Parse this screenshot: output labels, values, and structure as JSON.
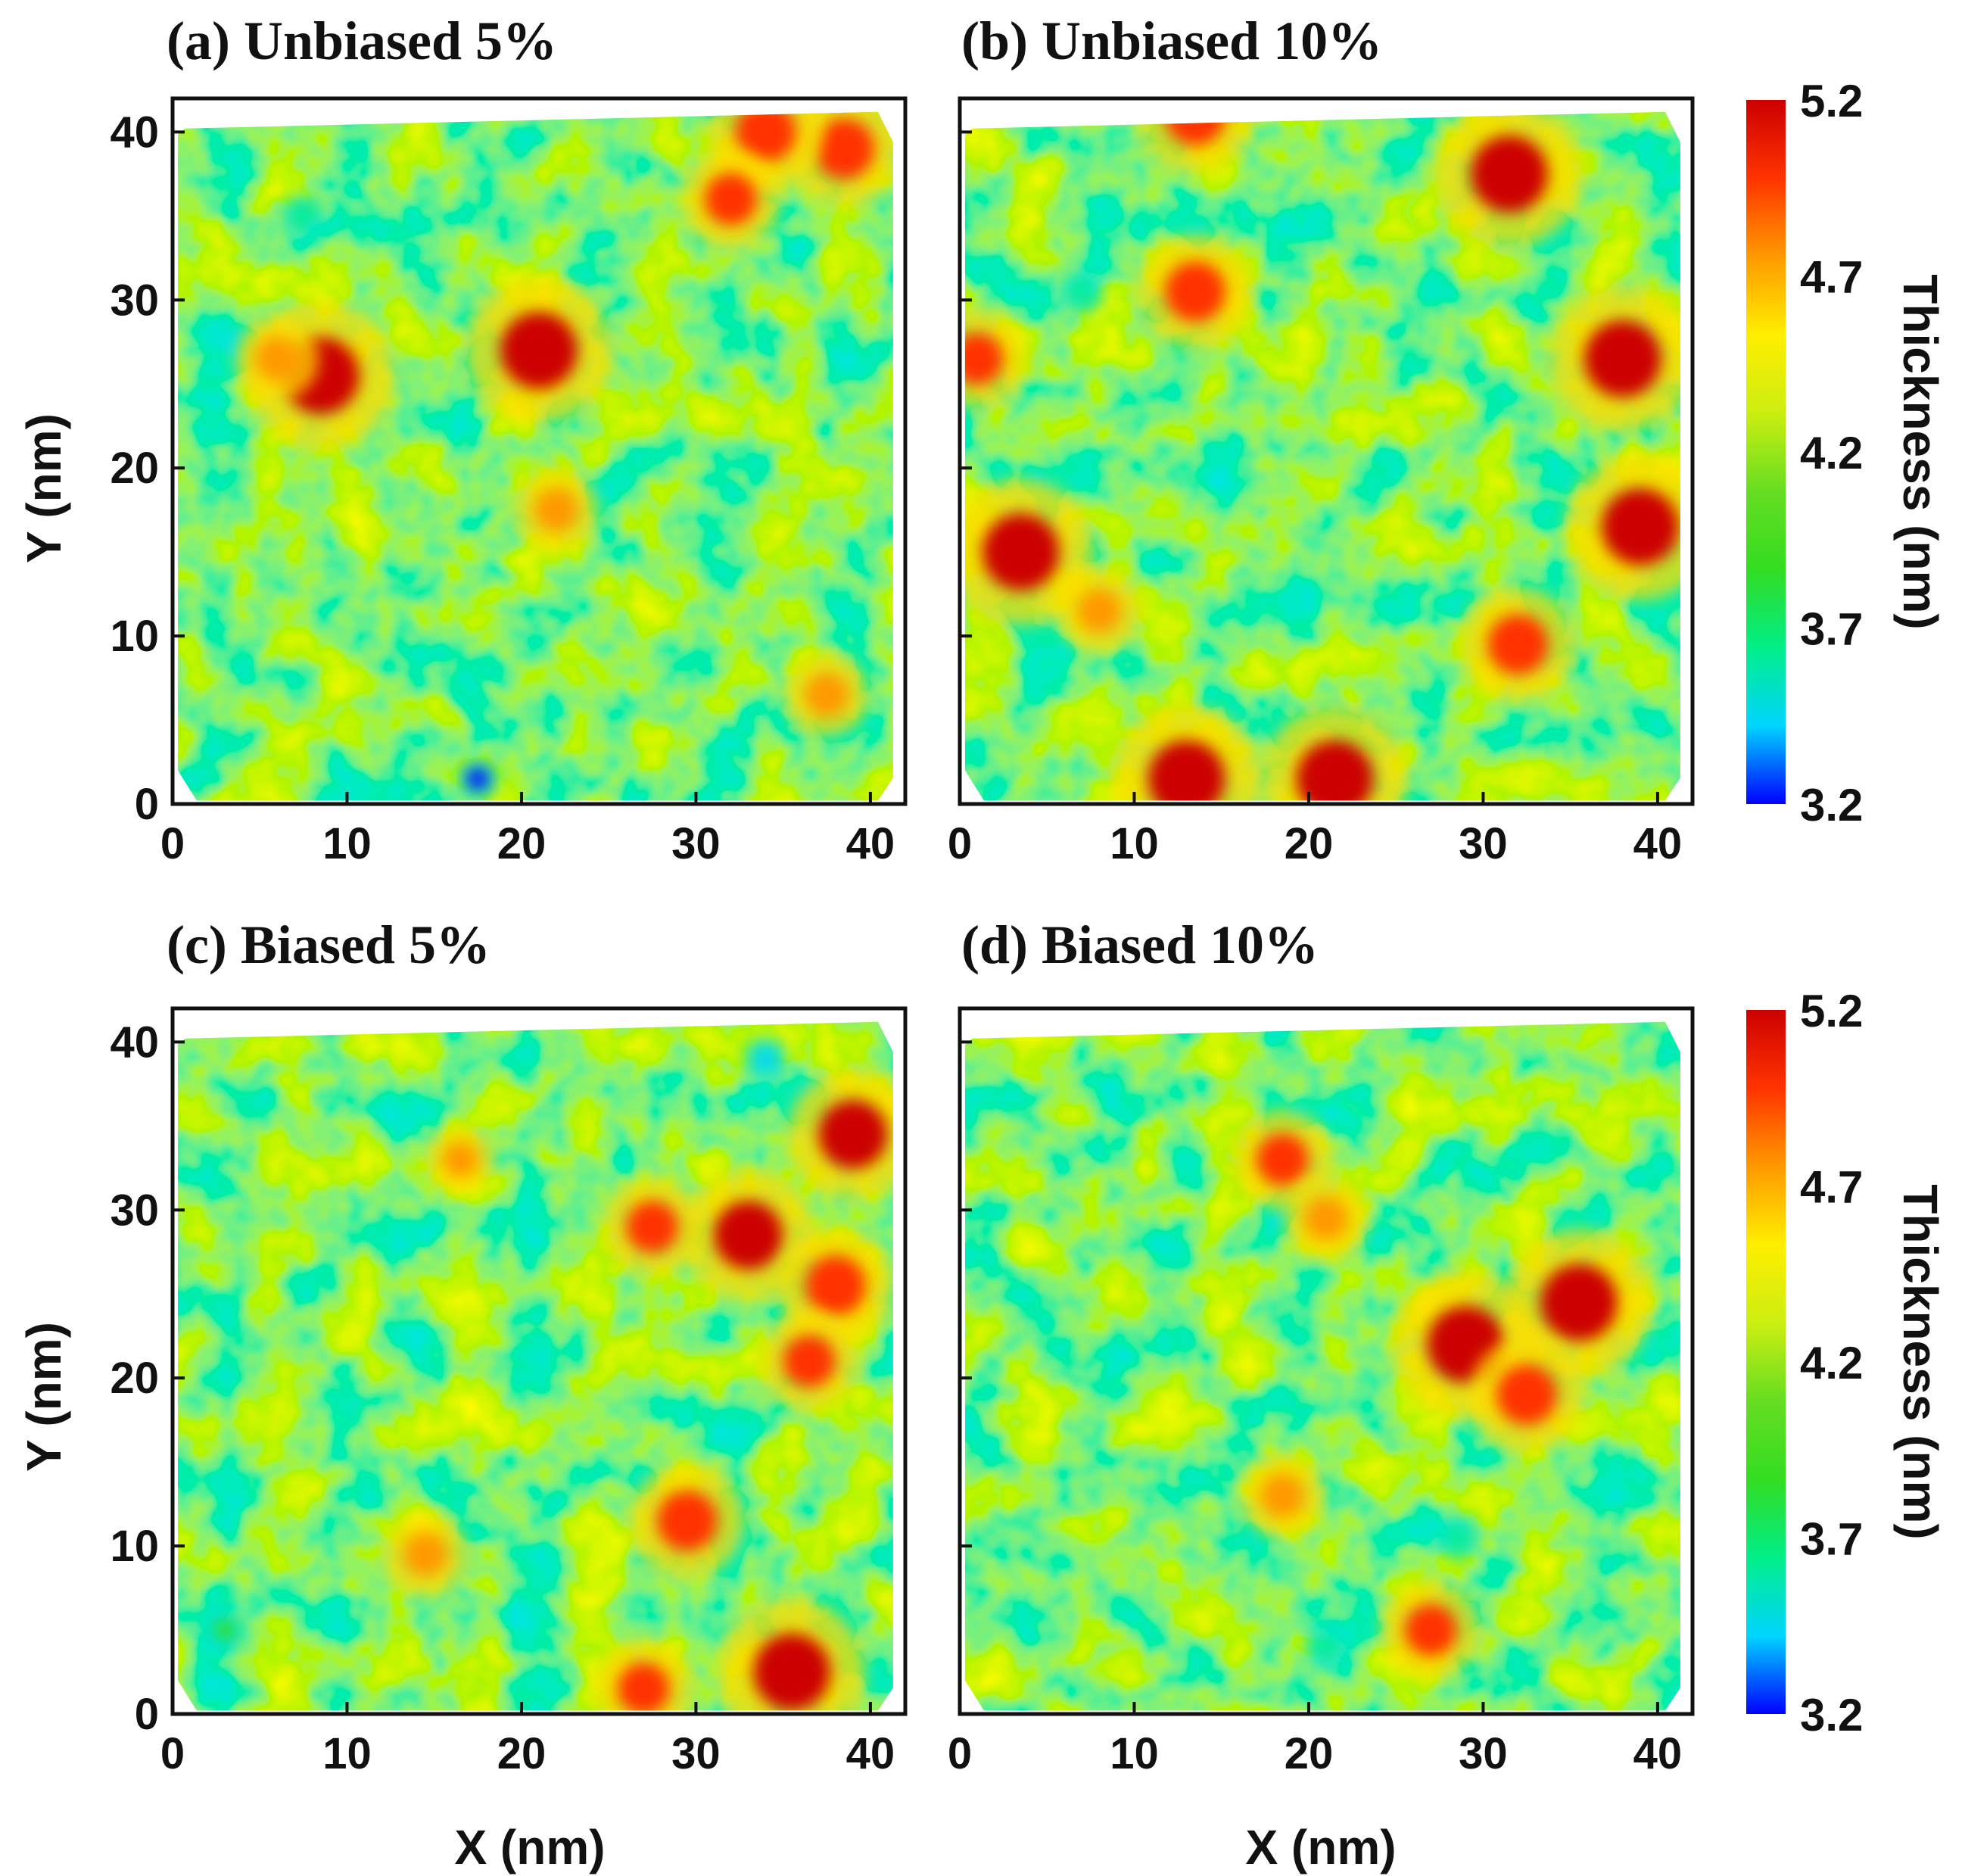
{
  "chart_data": [
    {
      "type": "heatmap",
      "title": "(a) Unbiased 5%",
      "xlabel": "",
      "ylabel": "Y (nm)",
      "xlim": [
        0,
        42
      ],
      "ylim": [
        0,
        42
      ],
      "x_ticks": [
        "0",
        "10",
        "20",
        "30",
        "40"
      ],
      "y_ticks": [
        "0",
        "10",
        "20",
        "30",
        "40"
      ],
      "z_label": "Thickness (nm)",
      "z_range": [
        3.2,
        5.2
      ],
      "hotspots": [
        {
          "x": 8.5,
          "y": 25.5,
          "z": 5.2
        },
        {
          "x": 21.0,
          "y": 27.0,
          "z": 5.2
        },
        {
          "x": 38.5,
          "y": 39.0,
          "z": 5.0
        },
        {
          "x": 34.0,
          "y": 40.0,
          "z": 5.0
        },
        {
          "x": 32.0,
          "y": 36.0,
          "z": 4.9
        },
        {
          "x": 22.0,
          "y": 17.5,
          "z": 4.8
        },
        {
          "x": 37.5,
          "y": 6.5,
          "z": 4.8
        },
        {
          "x": 6.0,
          "y": 26.5,
          "z": 4.8
        }
      ],
      "coldspots": [
        {
          "x": 17.5,
          "y": 1.5,
          "z": 3.3
        },
        {
          "x": 7.5,
          "y": 35.0,
          "z": 3.7
        }
      ]
    },
    {
      "type": "heatmap",
      "title": "(b) Unbiased 10%",
      "xlabel": "",
      "ylabel": "",
      "xlim": [
        0,
        42
      ],
      "ylim": [
        0,
        42
      ],
      "x_ticks": [
        "0",
        "10",
        "20",
        "30",
        "40"
      ],
      "y_ticks": [],
      "z_label": "Thickness (nm)",
      "z_range": [
        3.2,
        5.2
      ],
      "hotspots": [
        {
          "x": 13.0,
          "y": 1.5,
          "z": 5.2
        },
        {
          "x": 21.5,
          "y": 1.5,
          "z": 5.2
        },
        {
          "x": 38.0,
          "y": 26.5,
          "z": 5.2
        },
        {
          "x": 39.0,
          "y": 16.5,
          "z": 5.2
        },
        {
          "x": 31.5,
          "y": 37.5,
          "z": 5.2
        },
        {
          "x": 3.5,
          "y": 15.0,
          "z": 5.2
        },
        {
          "x": 32.0,
          "y": 9.5,
          "z": 5.0
        },
        {
          "x": 13.5,
          "y": 30.5,
          "z": 5.0
        },
        {
          "x": 13.5,
          "y": 41.0,
          "z": 5.0
        },
        {
          "x": 1.0,
          "y": 26.5,
          "z": 4.9
        },
        {
          "x": 8.0,
          "y": 11.5,
          "z": 4.8
        }
      ],
      "coldspots": [
        {
          "x": 7.0,
          "y": 30.5,
          "z": 3.7
        }
      ]
    },
    {
      "type": "heatmap",
      "title": "(c) Biased 5%",
      "xlabel": "X (nm)",
      "ylabel": "Y (nm)",
      "xlim": [
        0,
        42
      ],
      "ylim": [
        0,
        42
      ],
      "x_ticks": [
        "0",
        "10",
        "20",
        "30",
        "40"
      ],
      "y_ticks": [
        "0",
        "10",
        "20",
        "30",
        "40"
      ],
      "z_label": "Thickness (nm)",
      "z_range": [
        3.2,
        5.2
      ],
      "hotspots": [
        {
          "x": 35.5,
          "y": 2.5,
          "z": 5.2
        },
        {
          "x": 33.0,
          "y": 28.5,
          "z": 5.1
        },
        {
          "x": 39.0,
          "y": 34.5,
          "z": 5.1
        },
        {
          "x": 38.0,
          "y": 25.5,
          "z": 5.0
        },
        {
          "x": 29.5,
          "y": 11.5,
          "z": 5.0
        },
        {
          "x": 36.5,
          "y": 21.0,
          "z": 4.9
        },
        {
          "x": 27.5,
          "y": 29.0,
          "z": 4.9
        },
        {
          "x": 27.0,
          "y": 1.5,
          "z": 4.9
        },
        {
          "x": 14.5,
          "y": 9.5,
          "z": 4.8
        },
        {
          "x": 16.5,
          "y": 33.0,
          "z": 4.7
        }
      ],
      "coldspots": [
        {
          "x": 34.0,
          "y": 39.0,
          "z": 3.5
        },
        {
          "x": 3.0,
          "y": 5.0,
          "z": 3.8
        }
      ]
    },
    {
      "type": "heatmap",
      "title": "(d) Biased 10%",
      "xlabel": "X (nm)",
      "ylabel": "",
      "xlim": [
        0,
        42
      ],
      "ylim": [
        0,
        42
      ],
      "x_ticks": [
        "0",
        "10",
        "20",
        "30",
        "40"
      ],
      "y_ticks": [],
      "z_label": "Thickness (nm)",
      "z_range": [
        3.2,
        5.2
      ],
      "hotspots": [
        {
          "x": 29.0,
          "y": 22.0,
          "z": 5.2
        },
        {
          "x": 35.5,
          "y": 24.5,
          "z": 5.2
        },
        {
          "x": 32.5,
          "y": 19.0,
          "z": 5.0
        },
        {
          "x": 18.5,
          "y": 33.0,
          "z": 4.9
        },
        {
          "x": 27.0,
          "y": 5.0,
          "z": 4.9
        },
        {
          "x": 21.0,
          "y": 29.5,
          "z": 4.8
        },
        {
          "x": 18.5,
          "y": 13.0,
          "z": 4.8
        }
      ],
      "coldspots": [
        {
          "x": 28.5,
          "y": 10.5,
          "z": 3.7
        },
        {
          "x": 21.0,
          "y": 4.0,
          "z": 3.7
        }
      ]
    }
  ],
  "colorbars": [
    {
      "label": "Thickness (nm)",
      "ticks": [
        "5.2",
        "4.7",
        "4.2",
        "3.7",
        "3.2"
      ],
      "max": 5.2,
      "min": 3.2
    },
    {
      "label": "Thickness (nm)",
      "ticks": [
        "5.2",
        "4.7",
        "4.2",
        "3.7",
        "3.2"
      ],
      "max": 5.2,
      "min": 3.2
    }
  ],
  "colors": {
    "scale": [
      "#0000ff",
      "#00d5ff",
      "#00ee88",
      "#33dd22",
      "#66dd22",
      "#ccee11",
      "#ffee00",
      "#ff9900",
      "#ff3300",
      "#cc0000"
    ],
    "frame": "#111111",
    "background": "#ffffff"
  }
}
